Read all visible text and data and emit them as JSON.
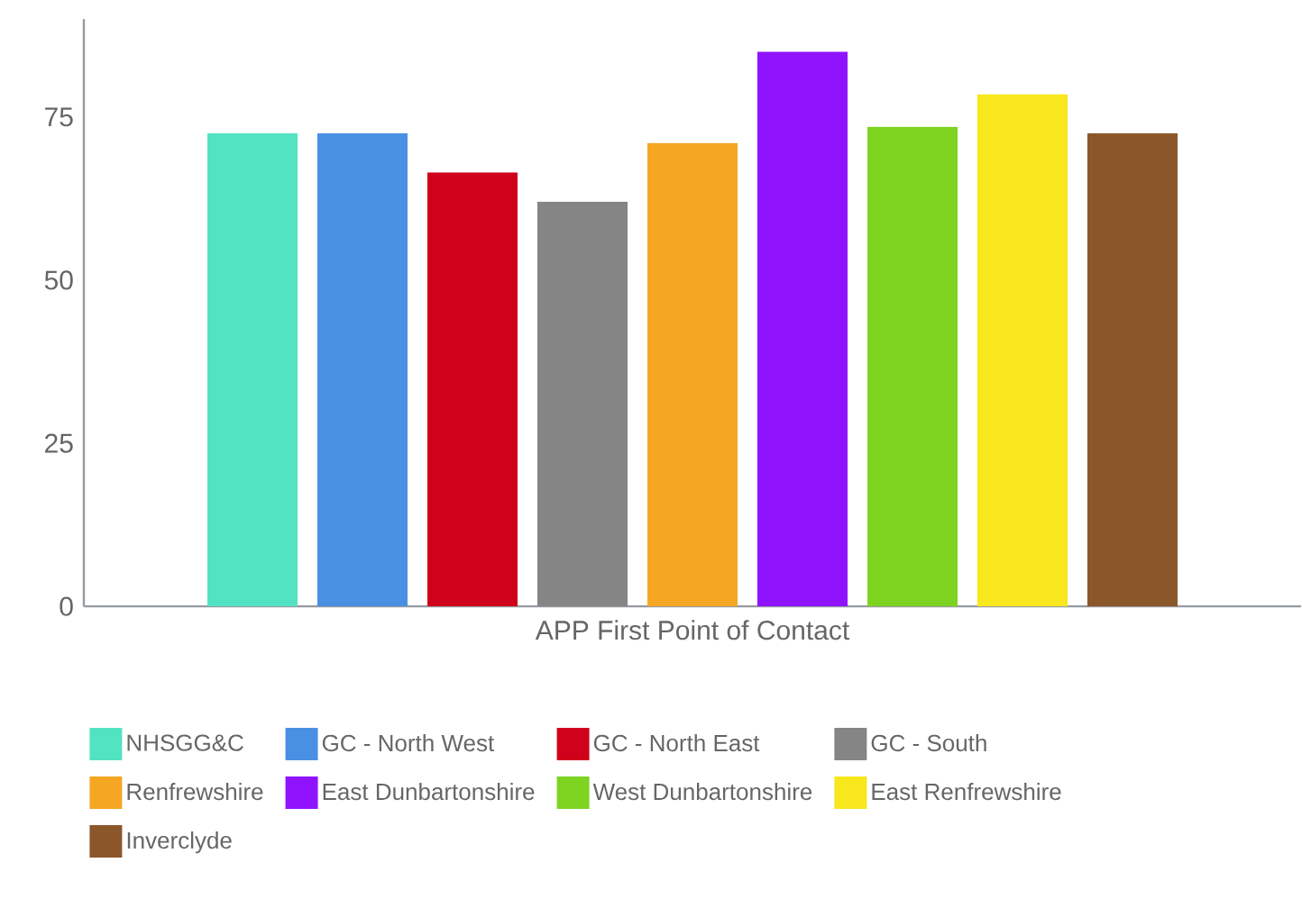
{
  "chart_data": {
    "type": "bar",
    "categories": [
      "APP First Point of Contact"
    ],
    "series": [
      {
        "name": "NHSGG&C",
        "color": "#52e3c2",
        "values": [
          72.5
        ]
      },
      {
        "name": "GC - North West",
        "color": "#4a90e2",
        "values": [
          72.5
        ]
      },
      {
        "name": "GC - North East",
        "color": "#d0021b",
        "values": [
          66.5
        ]
      },
      {
        "name": "GC - South",
        "color": "#858585",
        "values": [
          62
        ]
      },
      {
        "name": "Renfrewshire",
        "color": "#f5a623",
        "values": [
          71
        ]
      },
      {
        "name": "East Dunbartonshire",
        "color": "#9013fe",
        "values": [
          85
        ]
      },
      {
        "name": "West Dunbartonshire",
        "color": "#7ed321",
        "values": [
          73.5
        ]
      },
      {
        "name": "East Renfrewshire",
        "color": "#f8e71c",
        "values": [
          78.5
        ]
      },
      {
        "name": "Inverclyde",
        "color": "#8b572a",
        "values": [
          72.5
        ]
      }
    ],
    "ylim": [
      0,
      90
    ],
    "yticks": [
      0,
      25,
      50,
      75
    ],
    "legend": "bottom"
  }
}
